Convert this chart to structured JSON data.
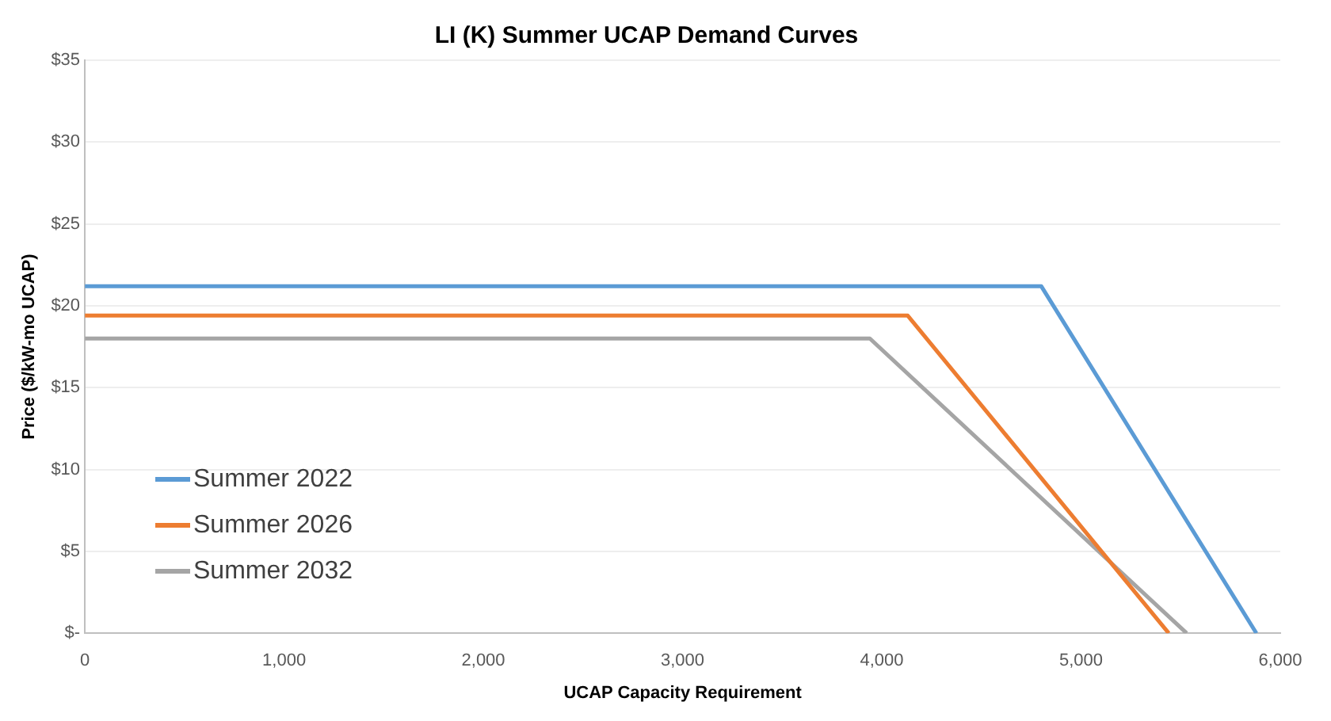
{
  "chart_data": {
    "type": "line",
    "title": "LI (K) Summer UCAP Demand Curves",
    "xlabel": "UCAP Capacity Requirement",
    "ylabel": "Price ($/kW-mo UCAP)",
    "series": [
      {
        "name": "Summer 2022",
        "color": "#5b9bd5",
        "x": [
          0,
          4800,
          5880
        ],
        "values": [
          21.2,
          21.2,
          0
        ]
      },
      {
        "name": "Summer 2026",
        "color": "#ed7d31",
        "x": [
          0,
          4130,
          5440
        ],
        "values": [
          19.4,
          19.4,
          0
        ]
      },
      {
        "name": "Summer 2032",
        "color": "#a5a5a5",
        "x": [
          0,
          3940,
          5530
        ],
        "values": [
          18.0,
          18.0,
          0
        ]
      }
    ],
    "xlim": [
      0,
      6000
    ],
    "xticks": [
      0,
      {
        "value": 1000,
        "label": "1,000"
      },
      {
        "value": 2000,
        "label": "2,000"
      },
      {
        "value": 3000,
        "label": "3,000"
      },
      {
        "value": 4000,
        "label": "4,000"
      },
      {
        "value": 5000,
        "label": "5,000"
      },
      {
        "value": 6000,
        "label": "6,000"
      }
    ],
    "ylim": [
      0,
      35
    ],
    "yticks": [
      {
        "value": 0,
        "label": "$-"
      },
      {
        "value": 5,
        "label": "$5"
      },
      {
        "value": 10,
        "label": "$10"
      },
      {
        "value": 15,
        "label": "$15"
      },
      {
        "value": 20,
        "label": "$20"
      },
      {
        "value": 25,
        "label": "$25"
      },
      {
        "value": 30,
        "label": "$30"
      },
      {
        "value": 35,
        "label": "$35"
      }
    ],
    "grid": "y",
    "legend": "center left",
    "marker": "none",
    "line_style": "solid"
  }
}
